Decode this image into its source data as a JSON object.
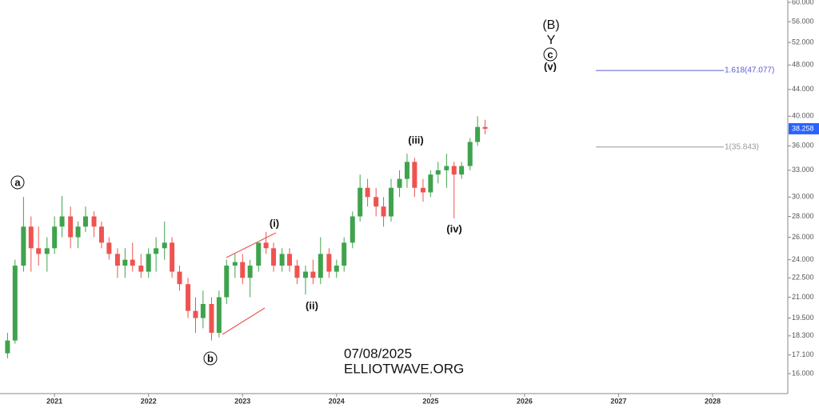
{
  "chart_data": {
    "type": "candlestick",
    "log_scale": true,
    "up_color": "#3fa34d",
    "down_color": "#ef5350",
    "x": [
      2020.5,
      2020.58,
      2020.67,
      2020.75,
      2020.83,
      2020.92,
      2021.0,
      2021.08,
      2021.17,
      2021.25,
      2021.33,
      2021.42,
      2021.5,
      2021.58,
      2021.67,
      2021.75,
      2021.83,
      2021.92,
      2022.0,
      2022.08,
      2022.17,
      2022.25,
      2022.33,
      2022.42,
      2022.5,
      2022.58,
      2022.67,
      2022.75,
      2022.83,
      2022.92,
      2023.0,
      2023.08,
      2023.17,
      2023.25,
      2023.33,
      2023.42,
      2023.5,
      2023.58,
      2023.67,
      2023.75,
      2023.83,
      2023.92,
      2024.0,
      2024.08,
      2024.17,
      2024.25,
      2024.33,
      2024.42,
      2024.5,
      2024.58,
      2024.67,
      2024.75,
      2024.83,
      2024.92,
      2025.0,
      2025.08,
      2025.17,
      2025.25,
      2025.33,
      2025.42,
      2025.5,
      2025.58
    ],
    "open": [
      17.2,
      18,
      23.5,
      27,
      25,
      24.5,
      25,
      27,
      28,
      26,
      27,
      28,
      27,
      25.5,
      24.5,
      23.5,
      24,
      23.5,
      23,
      24.5,
      25,
      25.5,
      23,
      22,
      20,
      19.5,
      20.5,
      18.5,
      21,
      23.5,
      23.8,
      22.5,
      23.5,
      25.5,
      25,
      23.5,
      24.5,
      23.5,
      22.5,
      23,
      22.5,
      24.5,
      23,
      23.5,
      25.5,
      28,
      31,
      30,
      29,
      28,
      31,
      32,
      34,
      31,
      30.5,
      32.5,
      33,
      33.5,
      32.5,
      33.5,
      36.5,
      38.5
    ],
    "high": [
      18.5,
      24,
      30,
      28,
      27,
      26,
      28,
      30.1,
      29,
      27.5,
      29,
      28.5,
      27.5,
      26,
      25,
      25,
      25.5,
      24.5,
      25,
      26,
      27.5,
      26,
      23.5,
      22.5,
      21,
      21.5,
      21,
      21.5,
      24,
      24.5,
      24.5,
      24,
      25.5,
      26.5,
      25.5,
      25,
      25,
      24,
      23.5,
      24,
      26,
      25,
      24,
      26,
      28.5,
      32.5,
      32,
      31,
      30,
      32,
      33,
      35,
      34.5,
      32,
      33,
      34,
      35,
      34,
      34,
      37,
      40,
      39.5
    ],
    "low": [
      16.9,
      17.8,
      23,
      23,
      23.5,
      23,
      24.5,
      26,
      25,
      25,
      26.5,
      26,
      25,
      24,
      22.5,
      22.5,
      23,
      22.5,
      22.5,
      23,
      24,
      22.5,
      21.5,
      19.5,
      18.5,
      18.8,
      18,
      18.2,
      20.5,
      22.5,
      22,
      21,
      23,
      24.5,
      23,
      23,
      23,
      22,
      21.2,
      22,
      22,
      22.5,
      22.5,
      23,
      25,
      27.5,
      29,
      28,
      27,
      27.5,
      30,
      31,
      30,
      29.5,
      30,
      31.5,
      31,
      27.8,
      32,
      33,
      36,
      37.5
    ],
    "close": [
      18,
      23.5,
      27,
      25,
      24.5,
      25,
      27,
      28,
      26,
      27,
      28,
      27,
      25.5,
      24.5,
      23.5,
      24,
      23.5,
      23,
      24.5,
      25,
      25.5,
      23,
      22,
      20,
      19.5,
      20.5,
      18.5,
      21,
      23.5,
      23.8,
      22.5,
      23.5,
      25.5,
      25,
      23.5,
      24.5,
      23.5,
      22.5,
      23,
      22.5,
      24.5,
      23,
      23.5,
      25.5,
      28,
      31,
      30,
      29,
      28,
      31,
      32,
      34,
      31,
      30.5,
      32.5,
      33,
      33.5,
      32.5,
      33.5,
      36.5,
      38.5,
      38.258
    ],
    "xlim": [
      2020.42,
      2028.8
    ],
    "xticks": [
      2021,
      2022,
      2023,
      2024,
      2025,
      2026,
      2027,
      2028
    ],
    "ylim": [
      14.9,
      60.5
    ],
    "yticks": [
      {
        "value": 16,
        "label": "16.000"
      },
      {
        "value": 17.1,
        "label": "17.100"
      },
      {
        "value": 18.3,
        "label": "18.300"
      },
      {
        "value": 19.5,
        "label": "19.500"
      },
      {
        "value": 21,
        "label": "21.000"
      },
      {
        "value": 22.5,
        "label": "22.500"
      },
      {
        "value": 24,
        "label": "24.000"
      },
      {
        "value": 26,
        "label": "26.000"
      },
      {
        "value": 28,
        "label": "28.000"
      },
      {
        "value": 30,
        "label": "30.000"
      },
      {
        "value": 33,
        "label": "33.000"
      },
      {
        "value": 36,
        "label": "36.000"
      },
      {
        "value": 40,
        "label": "40.000"
      },
      {
        "value": 44,
        "label": "44.000"
      },
      {
        "value": 48,
        "label": "48.000"
      },
      {
        "value": 52,
        "label": "52.000"
      },
      {
        "value": 56,
        "label": "56.000"
      },
      {
        "value": 60,
        "label": "60.000"
      }
    ],
    "last_price": {
      "value": 38.258,
      "label": "38.258",
      "color": "#2962ff"
    },
    "fib_levels": [
      {
        "value": 47.077,
        "label": "1.618(47.077)",
        "color": "#5b5bd6"
      },
      {
        "value": 35.843,
        "label": "1(35.843)",
        "color": "#999999"
      }
    ],
    "wave_labels": {
      "a": "a",
      "b": "b",
      "i": "(i)",
      "ii": "(ii)",
      "iii": "(iii)",
      "iv": "(iv)",
      "B": "(B)",
      "Y": "Y",
      "c": "c",
      "v": "(v)"
    },
    "date": "07/08/2025",
    "source": "ELLIOTWAVE.ORG"
  }
}
